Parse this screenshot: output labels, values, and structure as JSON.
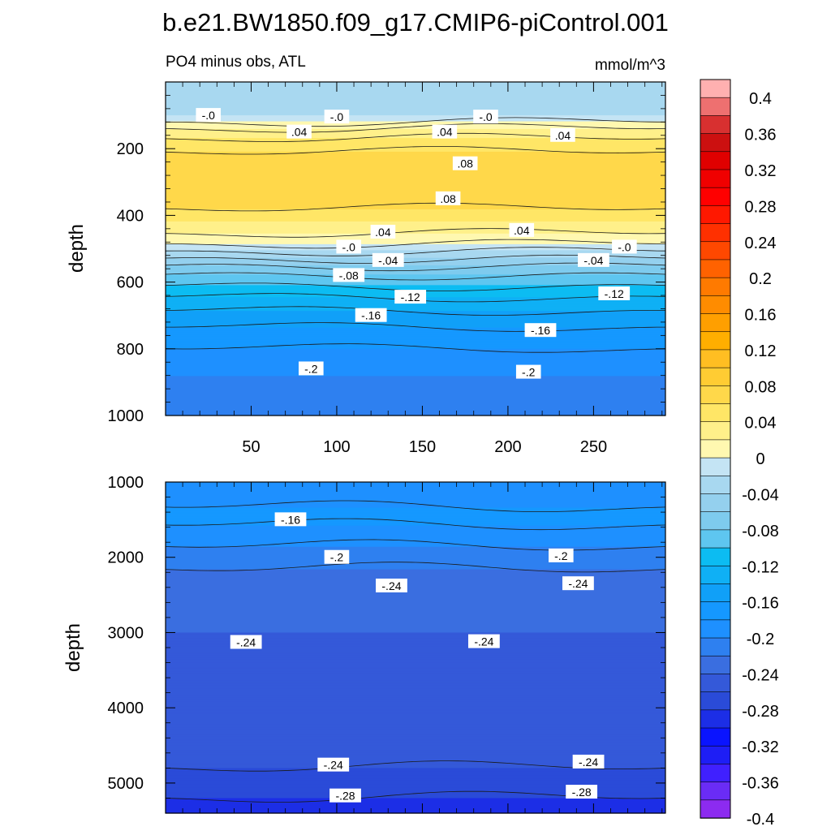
{
  "title": "b.e21.BW1850.f09_g17.CMIP6-piControl.001",
  "chart_data": [
    {
      "type": "contour",
      "panel": "upper",
      "subtitle_left": "PO4 minus obs, ATL",
      "subtitle_right": "mmol/m^3",
      "ylabel": "depth",
      "xlabel": "",
      "xlim": [
        0,
        292
      ],
      "ylim": [
        0,
        1000
      ],
      "y_reversed": true,
      "x_ticks": [
        "50",
        "100",
        "150",
        "200",
        "250"
      ],
      "x_tick_values": [
        50,
        100,
        150,
        200,
        250
      ],
      "y_ticks": [
        "200",
        "400",
        "600",
        "800",
        "1000"
      ],
      "y_tick_values": [
        200,
        400,
        600,
        800,
        1000
      ],
      "profile": [
        {
          "depth": 0,
          "value": -0.04
        },
        {
          "depth": 100,
          "value": -0.02
        },
        {
          "depth": 150,
          "value": 0.03
        },
        {
          "depth": 220,
          "value": 0.065
        },
        {
          "depth": 280,
          "value": 0.08
        },
        {
          "depth": 360,
          "value": 0.07
        },
        {
          "depth": 420,
          "value": 0.04
        },
        {
          "depth": 480,
          "value": 0.005
        },
        {
          "depth": 560,
          "value": -0.07
        },
        {
          "depth": 660,
          "value": -0.13
        },
        {
          "depth": 760,
          "value": -0.17
        },
        {
          "depth": 880,
          "value": -0.2
        },
        {
          "depth": 1000,
          "value": -0.21
        }
      ],
      "contour_labels": [
        {
          "text": "-.0",
          "x": 25,
          "depth": 100
        },
        {
          "text": "-.0",
          "x": 100,
          "depth": 105
        },
        {
          "text": "-.0",
          "x": 187,
          "depth": 105
        },
        {
          "text": ".04",
          "x": 78,
          "depth": 150
        },
        {
          "text": ".04",
          "x": 163,
          "depth": 150
        },
        {
          "text": ".04",
          "x": 232,
          "depth": 160
        },
        {
          "text": ".08",
          "x": 175,
          "depth": 245
        },
        {
          "text": ".08",
          "x": 165,
          "depth": 350
        },
        {
          "text": ".04",
          "x": 127,
          "depth": 450
        },
        {
          "text": ".04",
          "x": 208,
          "depth": 445
        },
        {
          "text": "-.0",
          "x": 107,
          "depth": 495
        },
        {
          "text": "-.0",
          "x": 268,
          "depth": 495
        },
        {
          "text": "-.04",
          "x": 130,
          "depth": 535
        },
        {
          "text": "-.04",
          "x": 250,
          "depth": 535
        },
        {
          "text": "-.08",
          "x": 107,
          "depth": 580
        },
        {
          "text": "-.12",
          "x": 143,
          "depth": 645
        },
        {
          "text": "-.12",
          "x": 262,
          "depth": 635
        },
        {
          "text": "-.16",
          "x": 120,
          "depth": 700
        },
        {
          "text": "-.16",
          "x": 219,
          "depth": 745
        },
        {
          "text": "-.2",
          "x": 85,
          "depth": 860
        },
        {
          "text": "-.2",
          "x": 212,
          "depth": 870
        }
      ]
    },
    {
      "type": "contour",
      "panel": "lower",
      "ylabel": "depth",
      "xlim": [
        0,
        292
      ],
      "ylim": [
        1000,
        5400
      ],
      "y_reversed": true,
      "y_ticks": [
        "1000",
        "2000",
        "3000",
        "4000",
        "5000"
      ],
      "y_tick_values": [
        1000,
        2000,
        3000,
        4000,
        5000
      ],
      "profile": [
        {
          "depth": 1000,
          "value": -0.19
        },
        {
          "depth": 1500,
          "value": -0.175
        },
        {
          "depth": 2000,
          "value": -0.21
        },
        {
          "depth": 2400,
          "value": -0.235
        },
        {
          "depth": 3000,
          "value": -0.24
        },
        {
          "depth": 4000,
          "value": -0.245
        },
        {
          "depth": 4600,
          "value": -0.25
        },
        {
          "depth": 5000,
          "value": -0.27
        },
        {
          "depth": 5400,
          "value": -0.29
        }
      ],
      "contour_labels": [
        {
          "text": "-.16",
          "x": 73,
          "depth": 1500
        },
        {
          "text": "-.2",
          "x": 100,
          "depth": 2000
        },
        {
          "text": "-.2",
          "x": 231,
          "depth": 1980
        },
        {
          "text": "-.24",
          "x": 132,
          "depth": 2380
        },
        {
          "text": "-.24",
          "x": 241,
          "depth": 2350
        },
        {
          "text": "-.24",
          "x": 47,
          "depth": 3130
        },
        {
          "text": "-.24",
          "x": 186,
          "depth": 3120
        },
        {
          "text": "-.24",
          "x": 98,
          "depth": 4760
        },
        {
          "text": "-.24",
          "x": 247,
          "depth": 4720
        },
        {
          "text": "-.28",
          "x": 105,
          "depth": 5170
        },
        {
          "text": "-.28",
          "x": 243,
          "depth": 5120
        }
      ]
    }
  ],
  "colorbar": {
    "levels": [
      -0.4,
      -0.38,
      -0.36,
      -0.34,
      -0.32,
      -0.3,
      -0.28,
      -0.26,
      -0.24,
      -0.22,
      -0.2,
      -0.18,
      -0.16,
      -0.14,
      -0.12,
      -0.1,
      -0.08,
      -0.06,
      -0.04,
      -0.02,
      0,
      0.02,
      0.04,
      0.06,
      0.08,
      0.1,
      0.12,
      0.14,
      0.16,
      0.18,
      0.2,
      0.22,
      0.24,
      0.26,
      0.28,
      0.3,
      0.32,
      0.34,
      0.36,
      0.38,
      0.4
    ],
    "colors": [
      "#8c2bf0",
      "#6a2cf5",
      "#4020ff",
      "#1e1ef5",
      "#0a14ff",
      "#1c2ee6",
      "#2a4bd8",
      "#3459d9",
      "#3a6ee0",
      "#2e80f0",
      "#1e90ff",
      "#1598ff",
      "#10a0f8",
      "#0fb0f5",
      "#0cbcf2",
      "#5ec6f0",
      "#7ecbee",
      "#94d0ee",
      "#a8d8f0",
      "#c4e4f4",
      "#fff8b0",
      "#fff08a",
      "#ffe666",
      "#ffd84a",
      "#ffcc33",
      "#ffbe22",
      "#ffae00",
      "#ff9f00",
      "#ff8c00",
      "#ff7a00",
      "#ff6200",
      "#ff4800",
      "#ff3000",
      "#ff1800",
      "#ff0000",
      "#f00000",
      "#e00000",
      "#cc1010",
      "#d83030",
      "#ee7070",
      "#ffb0b0"
    ],
    "tick_labels": [
      "0.4",
      "0.36",
      "0.32",
      "0.28",
      "0.24",
      "0.2",
      "0.16",
      "0.12",
      "0.08",
      "0.04",
      "0",
      "-0.04",
      "-0.08",
      "-0.12",
      "-0.16",
      "-0.2",
      "-0.24",
      "-0.28",
      "-0.32",
      "-0.36",
      "-0.4"
    ]
  }
}
